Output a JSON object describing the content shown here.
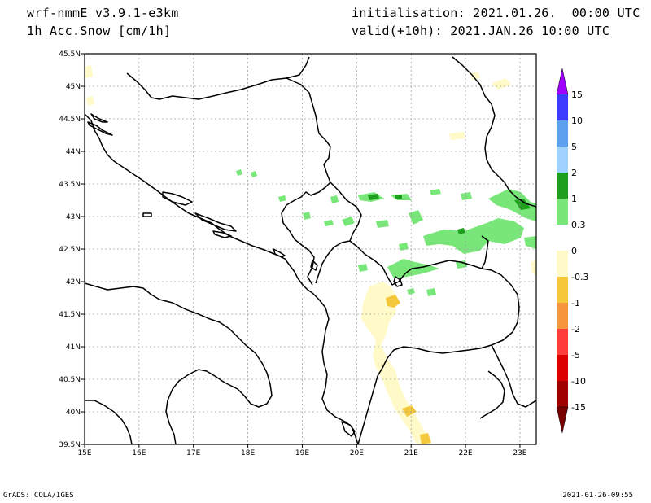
{
  "header": {
    "model": "wrf-nmmE_v3.9.1-e3km",
    "field": "1h Acc.Snow [cm/1h]",
    "init": "initialisation: 2021.01.26.  00:00 UTC",
    "valid": "valid(+10h): 2021.JAN.26 10:00 UTC"
  },
  "map": {
    "lon_labels": [
      "15E",
      "16E",
      "17E",
      "18E",
      "19E",
      "20E",
      "21E",
      "22E",
      "23E"
    ],
    "lat_labels": [
      "45.5N",
      "45N",
      "44.5N",
      "44N",
      "43.5N",
      "43N",
      "42.5N",
      "42N",
      "41.5N",
      "41N",
      "40.5N",
      "40N",
      "39.5N"
    ],
    "lon_range": [
      15,
      23.3
    ],
    "lat_range": [
      39.5,
      45.5
    ],
    "gridlines": true
  },
  "colorbar": {
    "labels": [
      "15",
      "10",
      "5",
      "2",
      "1",
      "0.3",
      "0",
      "-0.3",
      "-1",
      "-2",
      "-5",
      "-10",
      "-15"
    ],
    "colors": [
      "#a000ff",
      "#3c3cff",
      "#5ea0f0",
      "#a0d2ff",
      "#1ea01e",
      "#78e678",
      "#ffffff",
      "#fffac8",
      "#f5c83c",
      "#f5963c",
      "#ff3c3c",
      "#dc0000",
      "#a00000",
      "#780000"
    ]
  },
  "footer": {
    "left": "GrADS: COLA/IGES",
    "right": "2021-01-26-09:55"
  }
}
